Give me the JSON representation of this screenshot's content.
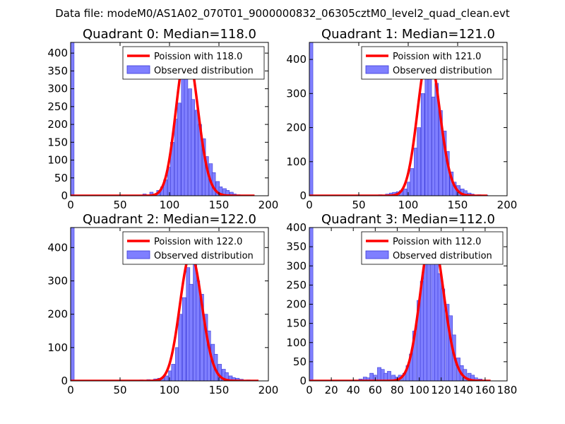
{
  "figure": {
    "suptitle": "Data file: modeM0/AS1A02_070T01_9000000832_06305cztM0_level2_quad_clean.evt"
  },
  "colors": {
    "bar_fill": "#7f7fff",
    "bar_edge": "#3a3ad8",
    "fit_line": "#ff0000",
    "axes": "#000000"
  },
  "chart_data": [
    {
      "type": "bar",
      "title": "Quadrant 0: Median=118.0",
      "xlabel": "",
      "ylabel": "",
      "xlim": [
        0,
        200
      ],
      "ylim": [
        0,
        430
      ],
      "xticks": [
        0,
        50,
        100,
        150,
        200
      ],
      "yticks": [
        0,
        50,
        100,
        150,
        200,
        250,
        300,
        350,
        400
      ],
      "median": 118.0,
      "legend": {
        "position": "top-right",
        "fit_label": "Poission with 118.0",
        "hist_label": "Observed distribution"
      },
      "bin_width": 3.5,
      "bins": [
        [
          0,
          430
        ],
        [
          73,
          5
        ],
        [
          80,
          10
        ],
        [
          84,
          5
        ],
        [
          87,
          15
        ],
        [
          91,
          25
        ],
        [
          94,
          45
        ],
        [
          98,
          80
        ],
        [
          101,
          150
        ],
        [
          105,
          215
        ],
        [
          108,
          260
        ],
        [
          112,
          360
        ],
        [
          115,
          410
        ],
        [
          119,
          300
        ],
        [
          122,
          270
        ],
        [
          126,
          240
        ],
        [
          129,
          200
        ],
        [
          133,
          160
        ],
        [
          136,
          110
        ],
        [
          140,
          90
        ],
        [
          143,
          65
        ],
        [
          147,
          40
        ],
        [
          150,
          25
        ],
        [
          154,
          20
        ],
        [
          157,
          15
        ],
        [
          161,
          10
        ],
        [
          164,
          5
        ],
        [
          168,
          3
        ],
        [
          175,
          2
        ],
        [
          182,
          1
        ]
      ],
      "fit_x_range": [
        0,
        186
      ]
    },
    {
      "type": "bar",
      "title": "Quadrant 1: Median=121.0",
      "xlabel": "",
      "ylabel": "",
      "xlim": [
        0,
        200
      ],
      "ylim": [
        0,
        450
      ],
      "xticks": [
        0,
        50,
        100,
        150,
        200
      ],
      "yticks": [
        0,
        100,
        200,
        300,
        400
      ],
      "median": 121.0,
      "legend": {
        "position": "top-right",
        "fit_label": "Poission with 121.0",
        "hist_label": "Observed distribution"
      },
      "bin_width": 3.6,
      "bins": [
        [
          0,
          450
        ],
        [
          70,
          3
        ],
        [
          77,
          5
        ],
        [
          81,
          8
        ],
        [
          84,
          10
        ],
        [
          88,
          12
        ],
        [
          91,
          15
        ],
        [
          95,
          20
        ],
        [
          99,
          40
        ],
        [
          102,
          80
        ],
        [
          106,
          140
        ],
        [
          109,
          200
        ],
        [
          113,
          300
        ],
        [
          117,
          350
        ],
        [
          120,
          420
        ],
        [
          124,
          290
        ],
        [
          127,
          330
        ],
        [
          131,
          250
        ],
        [
          135,
          190
        ],
        [
          138,
          130
        ],
        [
          142,
          70
        ],
        [
          145,
          40
        ],
        [
          149,
          30
        ],
        [
          153,
          20
        ],
        [
          156,
          15
        ],
        [
          160,
          8
        ],
        [
          163,
          5
        ],
        [
          170,
          3
        ],
        [
          177,
          2
        ]
      ],
      "fit_x_range": [
        0,
        180
      ]
    },
    {
      "type": "bar",
      "title": "Quadrant 2: Median=122.0",
      "xlabel": "",
      "ylabel": "",
      "xlim": [
        0,
        200
      ],
      "ylim": [
        0,
        460
      ],
      "xticks": [
        0,
        50,
        100,
        150,
        200
      ],
      "yticks": [
        0,
        100,
        200,
        300,
        400
      ],
      "median": 122.0,
      "legend": {
        "position": "top-right",
        "fit_label": "Poission with 122.0",
        "hist_label": "Observed distribution"
      },
      "bin_width": 3.6,
      "bins": [
        [
          0,
          460
        ],
        [
          70,
          3
        ],
        [
          77,
          4
        ],
        [
          84,
          6
        ],
        [
          88,
          8
        ],
        [
          91,
          10
        ],
        [
          95,
          15
        ],
        [
          99,
          30
        ],
        [
          102,
          50
        ],
        [
          106,
          100
        ],
        [
          109,
          200
        ],
        [
          113,
          250
        ],
        [
          117,
          340
        ],
        [
          120,
          290
        ],
        [
          124,
          380
        ],
        [
          127,
          300
        ],
        [
          131,
          260
        ],
        [
          135,
          200
        ],
        [
          138,
          150
        ],
        [
          142,
          110
        ],
        [
          145,
          80
        ],
        [
          149,
          50
        ],
        [
          153,
          35
        ],
        [
          156,
          25
        ],
        [
          160,
          15
        ],
        [
          163,
          10
        ],
        [
          167,
          8
        ],
        [
          171,
          5
        ],
        [
          178,
          3
        ],
        [
          185,
          2
        ]
      ],
      "fit_x_range": [
        0,
        190
      ]
    },
    {
      "type": "bar",
      "title": "Quadrant 3: Median=112.0",
      "xlabel": "",
      "ylabel": "",
      "xlim": [
        0,
        180
      ],
      "ylim": [
        0,
        400
      ],
      "xticks": [
        0,
        20,
        40,
        60,
        80,
        100,
        120,
        140,
        160,
        180
      ],
      "yticks": [
        0,
        50,
        100,
        150,
        200,
        250,
        300,
        350,
        400
      ],
      "median": 112.0,
      "legend": {
        "position": "top-right",
        "fit_label": "Poission with 112.0",
        "hist_label": "Observed distribution"
      },
      "bin_width": 3.3,
      "bins": [
        [
          0,
          400
        ],
        [
          45,
          5
        ],
        [
          49,
          10
        ],
        [
          52,
          8
        ],
        [
          55,
          20
        ],
        [
          58,
          15
        ],
        [
          62,
          35
        ],
        [
          65,
          30
        ],
        [
          68,
          20
        ],
        [
          71,
          25
        ],
        [
          75,
          15
        ],
        [
          78,
          10
        ],
        [
          81,
          15
        ],
        [
          85,
          20
        ],
        [
          88,
          40
        ],
        [
          91,
          70
        ],
        [
          94,
          130
        ],
        [
          98,
          210
        ],
        [
          101,
          260
        ],
        [
          104,
          320
        ],
        [
          107,
          380
        ],
        [
          111,
          360
        ],
        [
          114,
          310
        ],
        [
          117,
          280
        ],
        [
          120,
          240
        ],
        [
          124,
          200
        ],
        [
          127,
          170
        ],
        [
          130,
          120
        ],
        [
          134,
          60
        ],
        [
          137,
          40
        ],
        [
          140,
          30
        ],
        [
          144,
          20
        ],
        [
          147,
          15
        ],
        [
          150,
          8
        ],
        [
          154,
          5
        ],
        [
          157,
          2
        ]
      ],
      "fit_x_range": [
        0,
        165
      ]
    }
  ]
}
